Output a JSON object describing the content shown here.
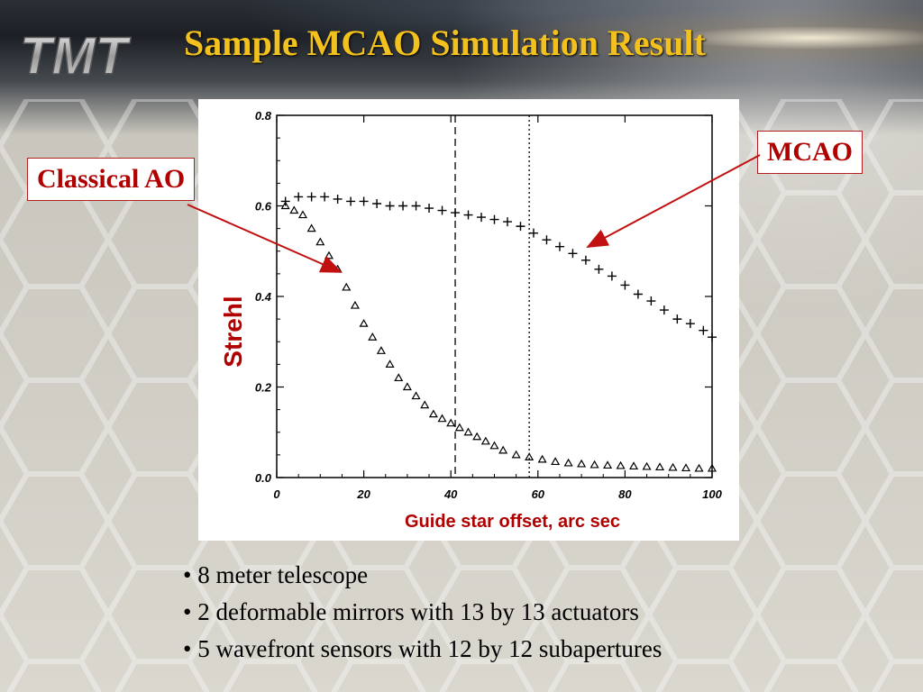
{
  "slide": {
    "title": "Sample MCAO Simulation Result",
    "logo_text": "TMT"
  },
  "callouts": {
    "classical": "Classical AO",
    "mcao": "MCAO"
  },
  "bullets": [
    "• 8 meter telescope",
    "• 2 deformable mirrors with 13 by 13 actuators",
    "• 5 wavefront sensors with 12 by 12 subapertures"
  ],
  "colors": {
    "title": "#f2c11e",
    "label_red": "#b00000",
    "arrow_red": "#c01010"
  },
  "chart_data": {
    "type": "scatter",
    "xlabel": "Guide star offset, arc sec",
    "ylabel": "Strehl",
    "xlim": [
      0,
      100
    ],
    "ylim": [
      0,
      0.8
    ],
    "xticks": [
      "0",
      "20",
      "40",
      "60",
      "80",
      "100"
    ],
    "yticks": [
      "0.0",
      "0.2",
      "0.4",
      "0.6",
      "0.8"
    ],
    "vlines": [
      {
        "x": 41,
        "style": "dashed"
      },
      {
        "x": 58,
        "style": "dotted"
      }
    ],
    "series": [
      {
        "marker": "triangle",
        "x": [
          2,
          4,
          6,
          8,
          10,
          12,
          14,
          16,
          18,
          20,
          22,
          24,
          26,
          28,
          30,
          32,
          34,
          36,
          38,
          40,
          42,
          44,
          46,
          48,
          50,
          52,
          55,
          58,
          61,
          64,
          67,
          70,
          73,
          76,
          79,
          82,
          85,
          88,
          91,
          94,
          97,
          100
        ],
        "y": [
          0.6,
          0.59,
          0.58,
          0.55,
          0.52,
          0.49,
          0.46,
          0.42,
          0.38,
          0.34,
          0.31,
          0.28,
          0.25,
          0.22,
          0.2,
          0.18,
          0.16,
          0.14,
          0.13,
          0.12,
          0.11,
          0.1,
          0.09,
          0.08,
          0.07,
          0.06,
          0.05,
          0.045,
          0.04,
          0.035,
          0.032,
          0.03,
          0.028,
          0.027,
          0.026,
          0.025,
          0.024,
          0.023,
          0.022,
          0.021,
          0.02,
          0.02
        ]
      },
      {
        "marker": "cross",
        "x": [
          2,
          5,
          8,
          11,
          14,
          17,
          20,
          23,
          26,
          29,
          32,
          35,
          38,
          41,
          44,
          47,
          50,
          53,
          56,
          59,
          62,
          65,
          68,
          71,
          74,
          77,
          80,
          83,
          86,
          89,
          92,
          95,
          98,
          100
        ],
        "y": [
          0.61,
          0.62,
          0.62,
          0.62,
          0.615,
          0.61,
          0.61,
          0.605,
          0.6,
          0.6,
          0.6,
          0.595,
          0.59,
          0.585,
          0.58,
          0.575,
          0.57,
          0.565,
          0.555,
          0.54,
          0.525,
          0.51,
          0.495,
          0.48,
          0.46,
          0.445,
          0.425,
          0.405,
          0.39,
          0.37,
          0.35,
          0.34,
          0.325,
          0.31
        ]
      }
    ]
  }
}
